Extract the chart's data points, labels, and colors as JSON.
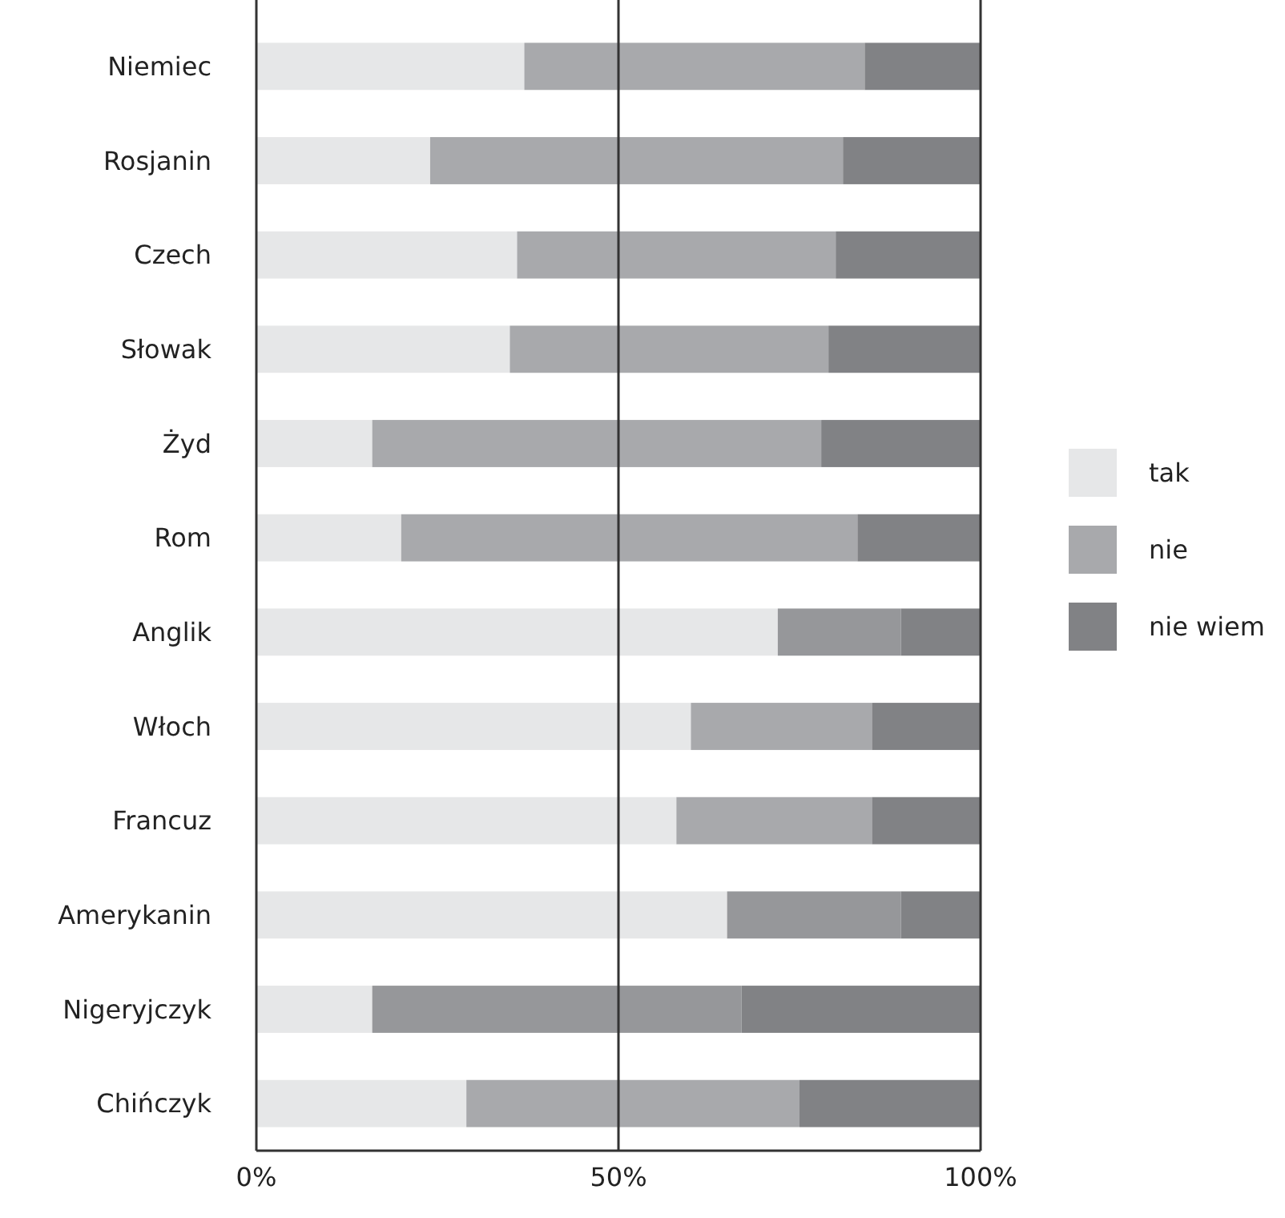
{
  "chart_data": {
    "type": "bar",
    "orientation": "horizontal",
    "stacked": true,
    "categories": [
      "Niemiec",
      "Rosjanin",
      "Czech",
      "Słowak",
      "Żyd",
      "Rom",
      "Anglik",
      "Włoch",
      "Francuz",
      "Amerykanin",
      "Nigeryjczyk",
      "Chińczyk"
    ],
    "series": [
      {
        "name": "tak",
        "color": "#e6e7e8",
        "values": [
          37,
          24,
          36,
          35,
          16,
          20,
          72,
          60,
          58,
          65,
          16,
          29
        ]
      },
      {
        "name": "nie",
        "color": "#a8a9ac",
        "colors": [
          "#a8a9ac",
          "#a8a9ac",
          "#a8a9ac",
          "#a8a9ac",
          "#a8a9ac",
          "#a8a9ac",
          "#96979a",
          "#a8a9ac",
          "#a8a9ac",
          "#96979a",
          "#96979a",
          "#a8a9ac"
        ],
        "values": [
          47,
          57,
          44,
          44,
          62,
          63,
          17,
          25,
          27,
          24,
          51,
          46
        ]
      },
      {
        "name": "nie wiem",
        "color": "#818285",
        "values": [
          16,
          19,
          20,
          21,
          22,
          17,
          11,
          15,
          15,
          11,
          33,
          25
        ]
      }
    ],
    "xlim": [
      0,
      100
    ],
    "xticks": [
      {
        "value": 0,
        "label": "0%"
      },
      {
        "value": 50,
        "label": "50%"
      },
      {
        "value": 100,
        "label": "100%"
      }
    ],
    "grid": "x",
    "legend": "right"
  }
}
